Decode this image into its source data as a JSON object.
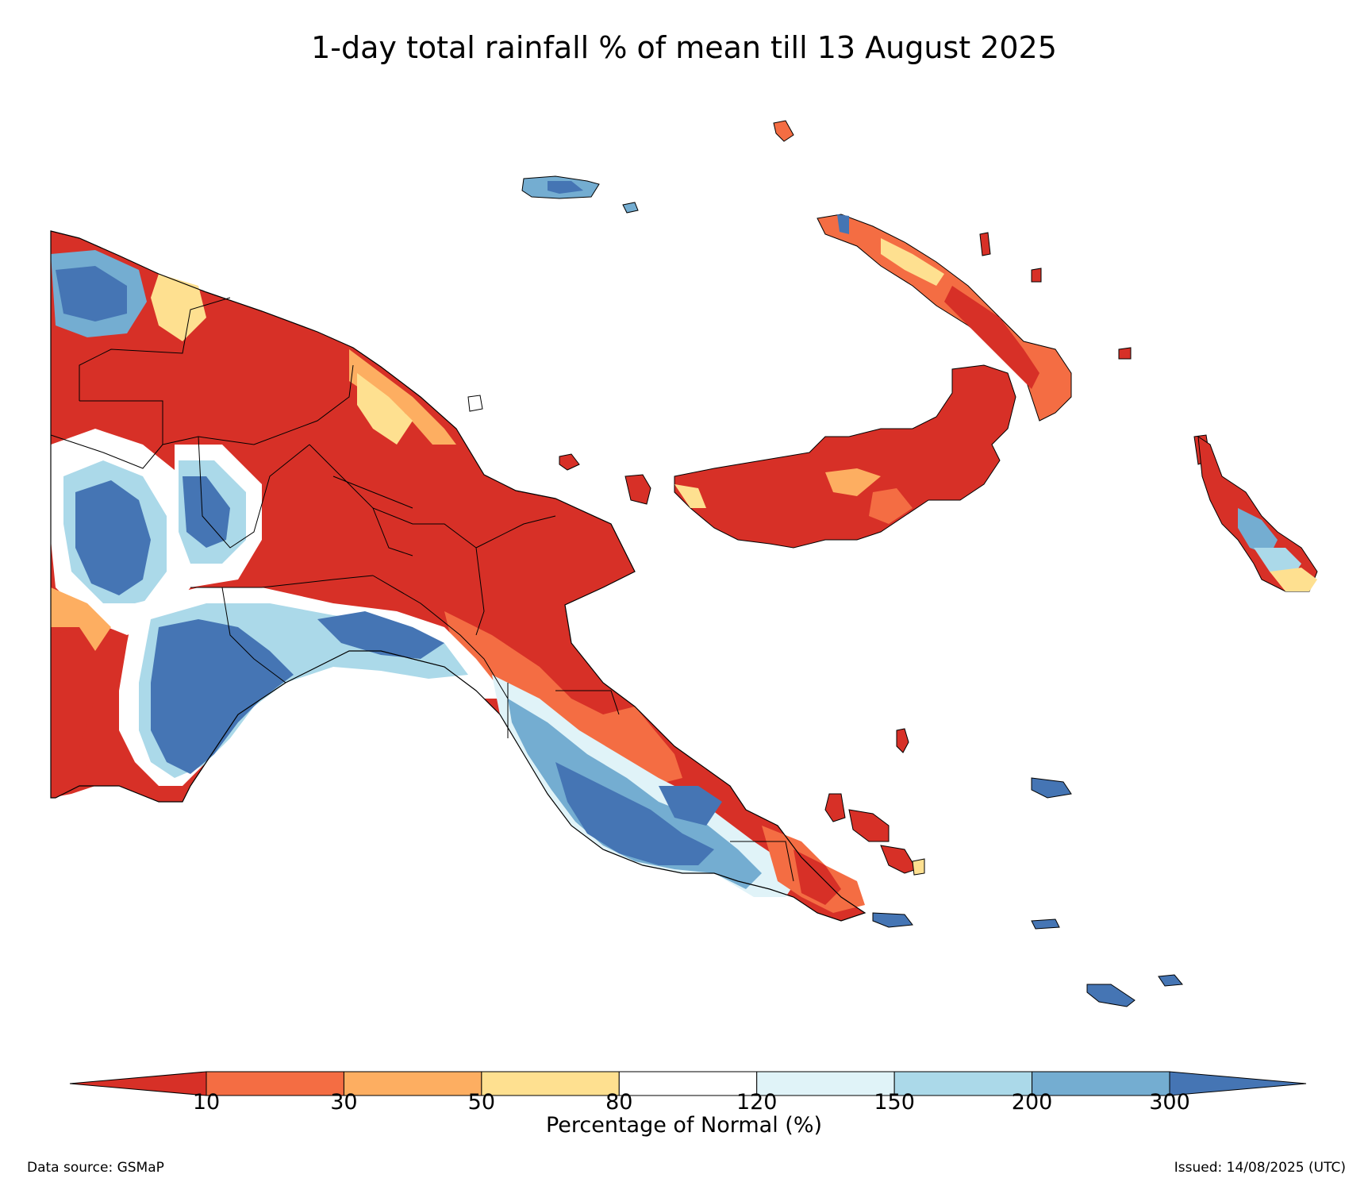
{
  "title": "1-day total rainfall % of mean till 13 August 2025",
  "colorbar": {
    "label": "Percentage of Normal (%)",
    "ticks": [
      "10",
      "30",
      "50",
      "80",
      "120",
      "150",
      "200",
      "300"
    ],
    "colors": {
      "below_10": "#d73027",
      "10_30": "#f46d43",
      "30_50": "#fdae61",
      "50_80": "#fee090",
      "80_120": "#ffffff",
      "120_150": "#e0f3f8",
      "150_200": "#abd9e9",
      "200_300": "#74add1",
      "above_300": "#4575b4"
    }
  },
  "footer": {
    "data_source": "Data source: GSMaP",
    "issued": "Issued: 14/08/2025 (UTC)"
  }
}
